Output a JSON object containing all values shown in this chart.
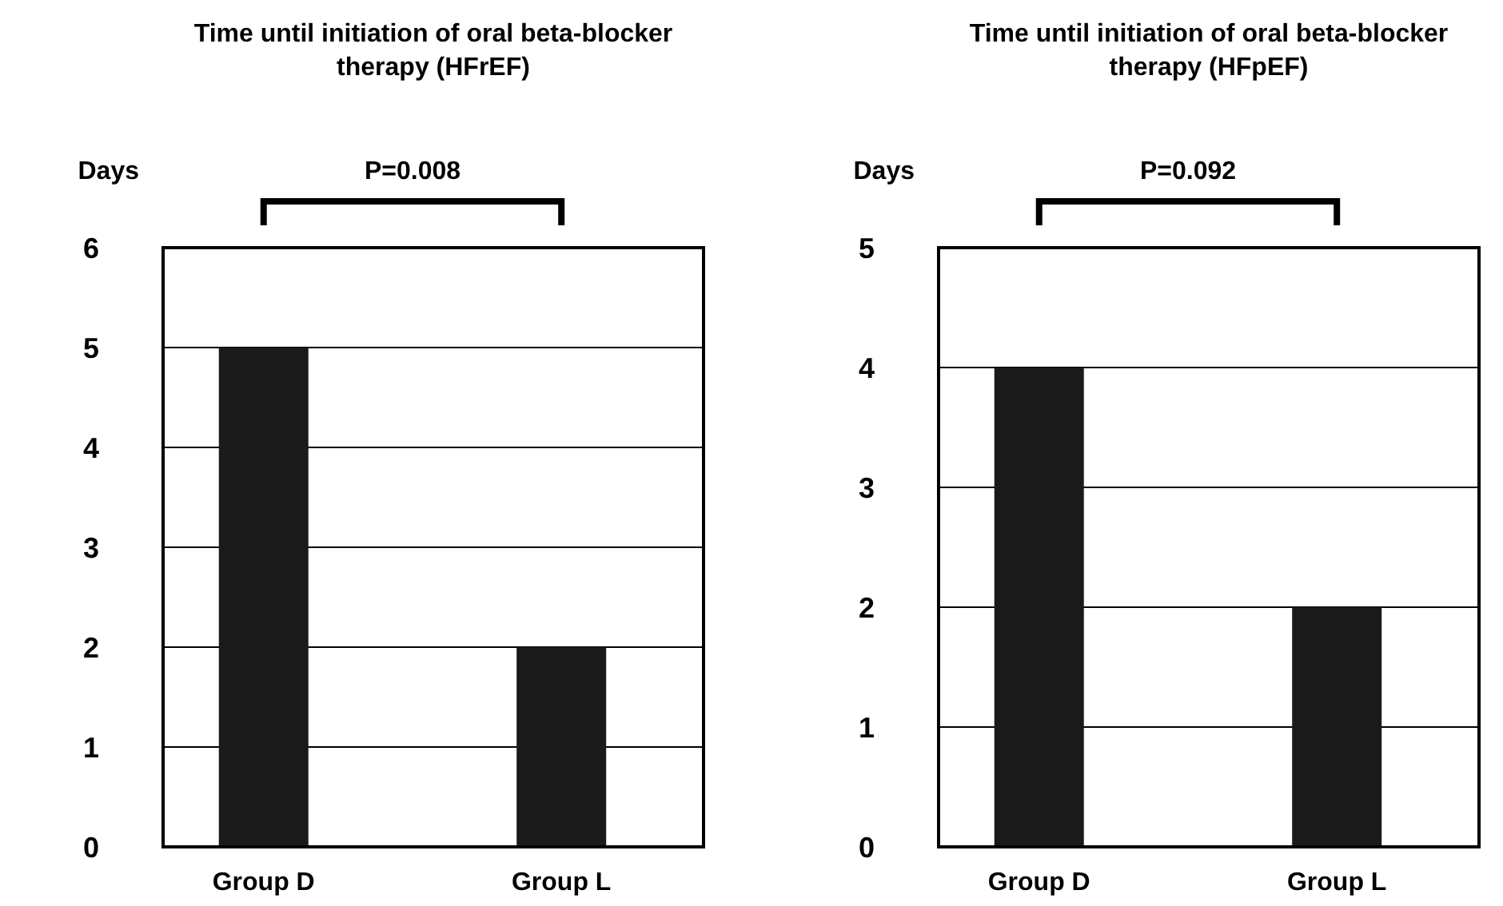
{
  "chart_data": [
    {
      "type": "bar",
      "title": "Time until initiation of oral beta-blocker therapy (HFrEF)",
      "ylabel": "Days",
      "categories": [
        "Group D",
        "Group L"
      ],
      "values": [
        5,
        2
      ],
      "color": "#1a1a1a",
      "ylim": [
        0,
        6
      ],
      "yticks": [
        0,
        1,
        2,
        3,
        4,
        5,
        6
      ],
      "grid": "y",
      "annotations": [
        "P=0.008"
      ]
    },
    {
      "type": "bar",
      "title": "Time until initiation of oral beta-blocker therapy (HFpEF)",
      "ylabel": "Days",
      "categories": [
        "Group D",
        "Group L"
      ],
      "values": [
        4,
        2
      ],
      "color": "#1a1a1a",
      "ylim": [
        0,
        5
      ],
      "yticks": [
        0,
        1,
        2,
        3,
        4,
        5
      ],
      "grid": "y",
      "annotations": [
        "P=0.092"
      ]
    }
  ]
}
